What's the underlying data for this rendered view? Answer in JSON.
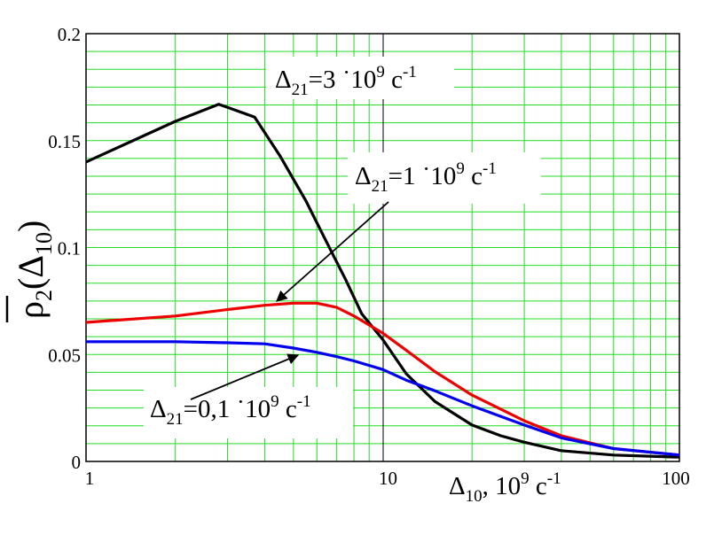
{
  "chart_data": {
    "type": "line",
    "x_scale": "log",
    "xlim": [
      1,
      100
    ],
    "ylim": [
      0,
      0.2
    ],
    "grid": true,
    "colors": {
      "grid": "#22dd22",
      "series": [
        "#000000",
        "#ee0000",
        "#0000ee"
      ]
    },
    "x_ticks": [
      {
        "value": 1,
        "label": "1"
      },
      {
        "value": 10,
        "label": "10"
      },
      {
        "value": 100,
        "label": "100"
      }
    ],
    "y_ticks": [
      {
        "value": 0,
        "label": "0"
      },
      {
        "value": 0.05,
        "label": "0.05"
      },
      {
        "value": 0.1,
        "label": "0.1"
      },
      {
        "value": 0.15,
        "label": "0.15"
      },
      {
        "value": 0.2,
        "label": "0.2"
      }
    ],
    "xlabel": {
      "main": "Δ",
      "sub": "10",
      "mid": ", 10",
      "sup": "9",
      "tail": " c",
      "sup2": "-1"
    },
    "ylabel": {
      "main": "ρ",
      "sub": "2",
      "arg_open": "(Δ",
      "arg_sub": "10",
      "arg_close": ")"
    },
    "series": [
      {
        "name": "Δ21=3·10^9 c-1",
        "color": "#000000",
        "x": [
          1,
          2,
          2.8,
          3.7,
          4.5,
          5.5,
          6.5,
          7.5,
          8.5,
          10,
          12,
          15,
          20,
          25,
          30,
          40,
          60,
          100
        ],
        "y": [
          0.14,
          0.159,
          0.167,
          0.161,
          0.143,
          0.122,
          0.102,
          0.085,
          0.069,
          0.057,
          0.041,
          0.028,
          0.017,
          0.012,
          0.009,
          0.005,
          0.003,
          0.002
        ]
      },
      {
        "name": "Δ21=1·10^9 c-1",
        "color": "#ee0000",
        "x": [
          1,
          2,
          3,
          4,
          5,
          6,
          7,
          8,
          10,
          12,
          15,
          20,
          30,
          40,
          60,
          100
        ],
        "y": [
          0.065,
          0.068,
          0.071,
          0.073,
          0.074,
          0.074,
          0.072,
          0.068,
          0.06,
          0.052,
          0.042,
          0.031,
          0.019,
          0.012,
          0.006,
          0.003
        ]
      },
      {
        "name": "Δ21=0,1·10^9 c-1",
        "color": "#0000ee",
        "x": [
          1,
          2,
          3,
          4,
          5,
          6,
          7,
          8,
          10,
          12,
          15,
          20,
          30,
          40,
          60,
          100
        ],
        "y": [
          0.056,
          0.056,
          0.0555,
          0.055,
          0.053,
          0.051,
          0.049,
          0.047,
          0.043,
          0.038,
          0.033,
          0.026,
          0.017,
          0.011,
          0.006,
          0.003
        ]
      }
    ],
    "annotations": [
      {
        "main": "Δ",
        "sub": "21",
        "mid": "=3 ˙10",
        "sup": "9",
        "tail": " c",
        "sup2": "-1"
      },
      {
        "main": "Δ",
        "sub": "21",
        "mid": "=1 ˙10",
        "sup": "9",
        "tail": " c",
        "sup2": "-1"
      },
      {
        "main": "Δ",
        "sub": "21",
        "mid": "=0,1 ˙10",
        "sup": "9",
        "tail": " c",
        "sup2": "-1"
      }
    ]
  }
}
